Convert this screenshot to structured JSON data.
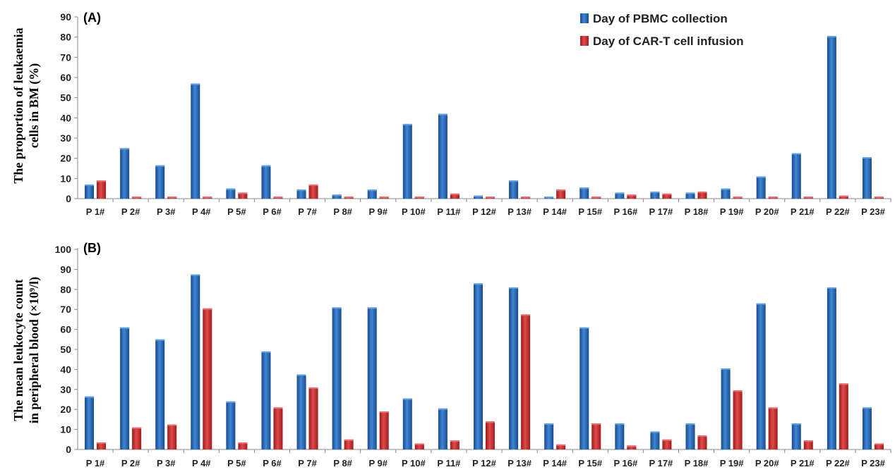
{
  "chart_data": [
    {
      "type": "bar",
      "panel_label": "(A)",
      "ylabel_lines": [
        "The proportion of leukaemia",
        "cells in BM (%)"
      ],
      "ylim": [
        0,
        90
      ],
      "ytick_step": 10,
      "grid": false,
      "legend_position": "top-right",
      "categories": [
        "P 1#",
        "P 2#",
        "P 3#",
        "P 4#",
        "P 5#",
        "P 6#",
        "P 7#",
        "P 8#",
        "P 9#",
        "P 10#",
        "P 11#",
        "P 12#",
        "P 13#",
        "P 14#",
        "P 15#",
        "P 16#",
        "P 17#",
        "P 18#",
        "P 19#",
        "P 20#",
        "P 21#",
        "P 22#",
        "P 23#"
      ],
      "series": [
        {
          "name": "Day of PBMC collection",
          "color": "#1f5fa8",
          "values": [
            7,
            25,
            16.5,
            57,
            5,
            16.5,
            4.5,
            2,
            4.5,
            37,
            42,
            1.5,
            9,
            1,
            5.5,
            3,
            3.5,
            3,
            5,
            11,
            22.5,
            80.5,
            20.5
          ]
        },
        {
          "name": "Day of CAR-T cell infusion",
          "color": "#c42424",
          "values": [
            9,
            1,
            1,
            1,
            3,
            1,
            7,
            1,
            1,
            1,
            2.5,
            1,
            1,
            4.5,
            1,
            2,
            2.5,
            3.5,
            1,
            1,
            1,
            1.5,
            1
          ]
        }
      ]
    },
    {
      "type": "bar",
      "panel_label": "(B)",
      "ylabel_lines": [
        "The mean leukocyte count",
        "in peripheral blood (×10⁹/l)"
      ],
      "ylim": [
        0,
        100
      ],
      "ytick_step": 10,
      "grid": false,
      "categories": [
        "P 1#",
        "P 2#",
        "P 3#",
        "P 4#",
        "P 5#",
        "P 6#",
        "P 7#",
        "P 8#",
        "P 9#",
        "P 10#",
        "P 11#",
        "P 12#",
        "P 13#",
        "P 14#",
        "P 15#",
        "P 16#",
        "P 17#",
        "P 18#",
        "P 19#",
        "P 20#",
        "P 21#",
        "P 22#",
        "P 23#"
      ],
      "series": [
        {
          "name": "Day of PBMC collection",
          "color": "#1f5fa8",
          "values": [
            26.5,
            61,
            55,
            87.5,
            24,
            49,
            37.5,
            71,
            71,
            25.5,
            20.5,
            83,
            81,
            13,
            61,
            13,
            9,
            13,
            40.5,
            73,
            13,
            81,
            21
          ]
        },
        {
          "name": "Day of CAR-T cell infusion",
          "color": "#c42424",
          "values": [
            3.5,
            11,
            12.5,
            70.5,
            3.5,
            21,
            31,
            5,
            19,
            3,
            4.5,
            14,
            67.5,
            2.5,
            13,
            2,
            5,
            7,
            29.5,
            21,
            4.5,
            33,
            3
          ]
        }
      ]
    }
  ]
}
